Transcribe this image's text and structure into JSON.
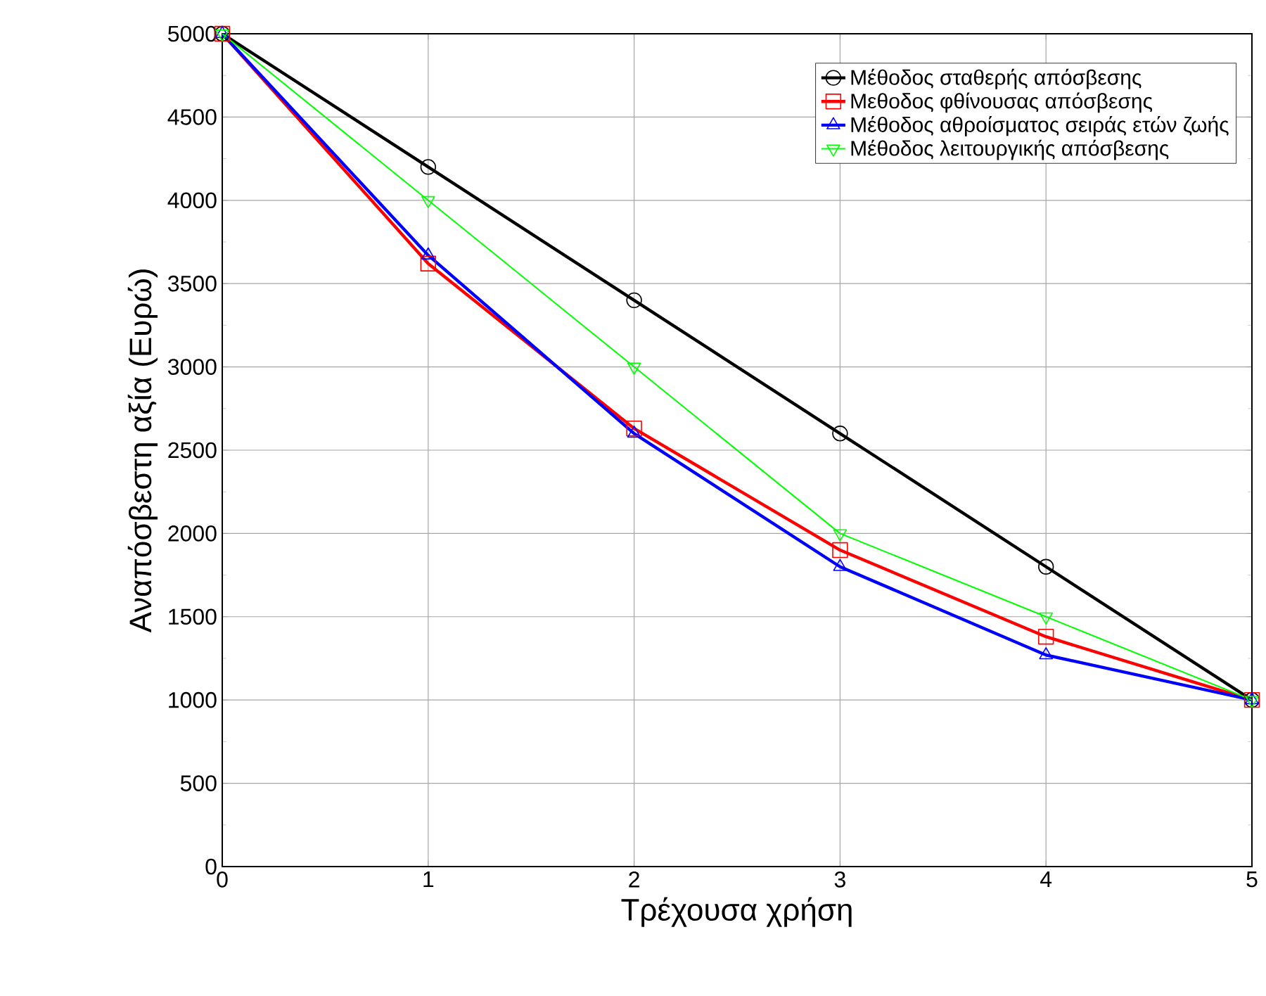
{
  "chart_data": {
    "type": "line",
    "xlabel": "Τρέχουσα χρήση",
    "ylabel": "Αναπόσβεστη αξία (Ευρώ)",
    "x": [
      0,
      1,
      2,
      3,
      4,
      5
    ],
    "xlim": [
      0,
      5
    ],
    "xticks": [
      0,
      1,
      2,
      3,
      4,
      5
    ],
    "ylim": [
      0,
      5000
    ],
    "yticks": [
      0,
      500,
      1000,
      1500,
      2000,
      2500,
      3000,
      3500,
      4000,
      4500,
      5000
    ],
    "grid": true,
    "legend": "top right",
    "line_style": "solid",
    "series": [
      {
        "name": "Μέθοδος σταθερής απόσβεσης",
        "color": "#000000",
        "marker": "circle",
        "values": [
          5000,
          4200,
          3400,
          2600,
          1800,
          1000
        ]
      },
      {
        "name": "Μεθοδος φθίνουσας απόσβεσης",
        "color": "#ff0000",
        "marker": "square",
        "values": [
          5000,
          3620,
          2630,
          1900,
          1380,
          1000
        ]
      },
      {
        "name": "Μέθοδος αθροίσματος σειράς ετών ζωής",
        "color": "#0000ff",
        "marker": "triangle",
        "values": [
          5000,
          3670,
          2600,
          1800,
          1270,
          1000
        ]
      },
      {
        "name": "Μέθοδος λειτουργικής απόσβεσης",
        "color": "#00ff00",
        "marker": "triangle_down",
        "values": [
          5000,
          4000,
          3000,
          2000,
          1500,
          1000
        ]
      }
    ]
  }
}
